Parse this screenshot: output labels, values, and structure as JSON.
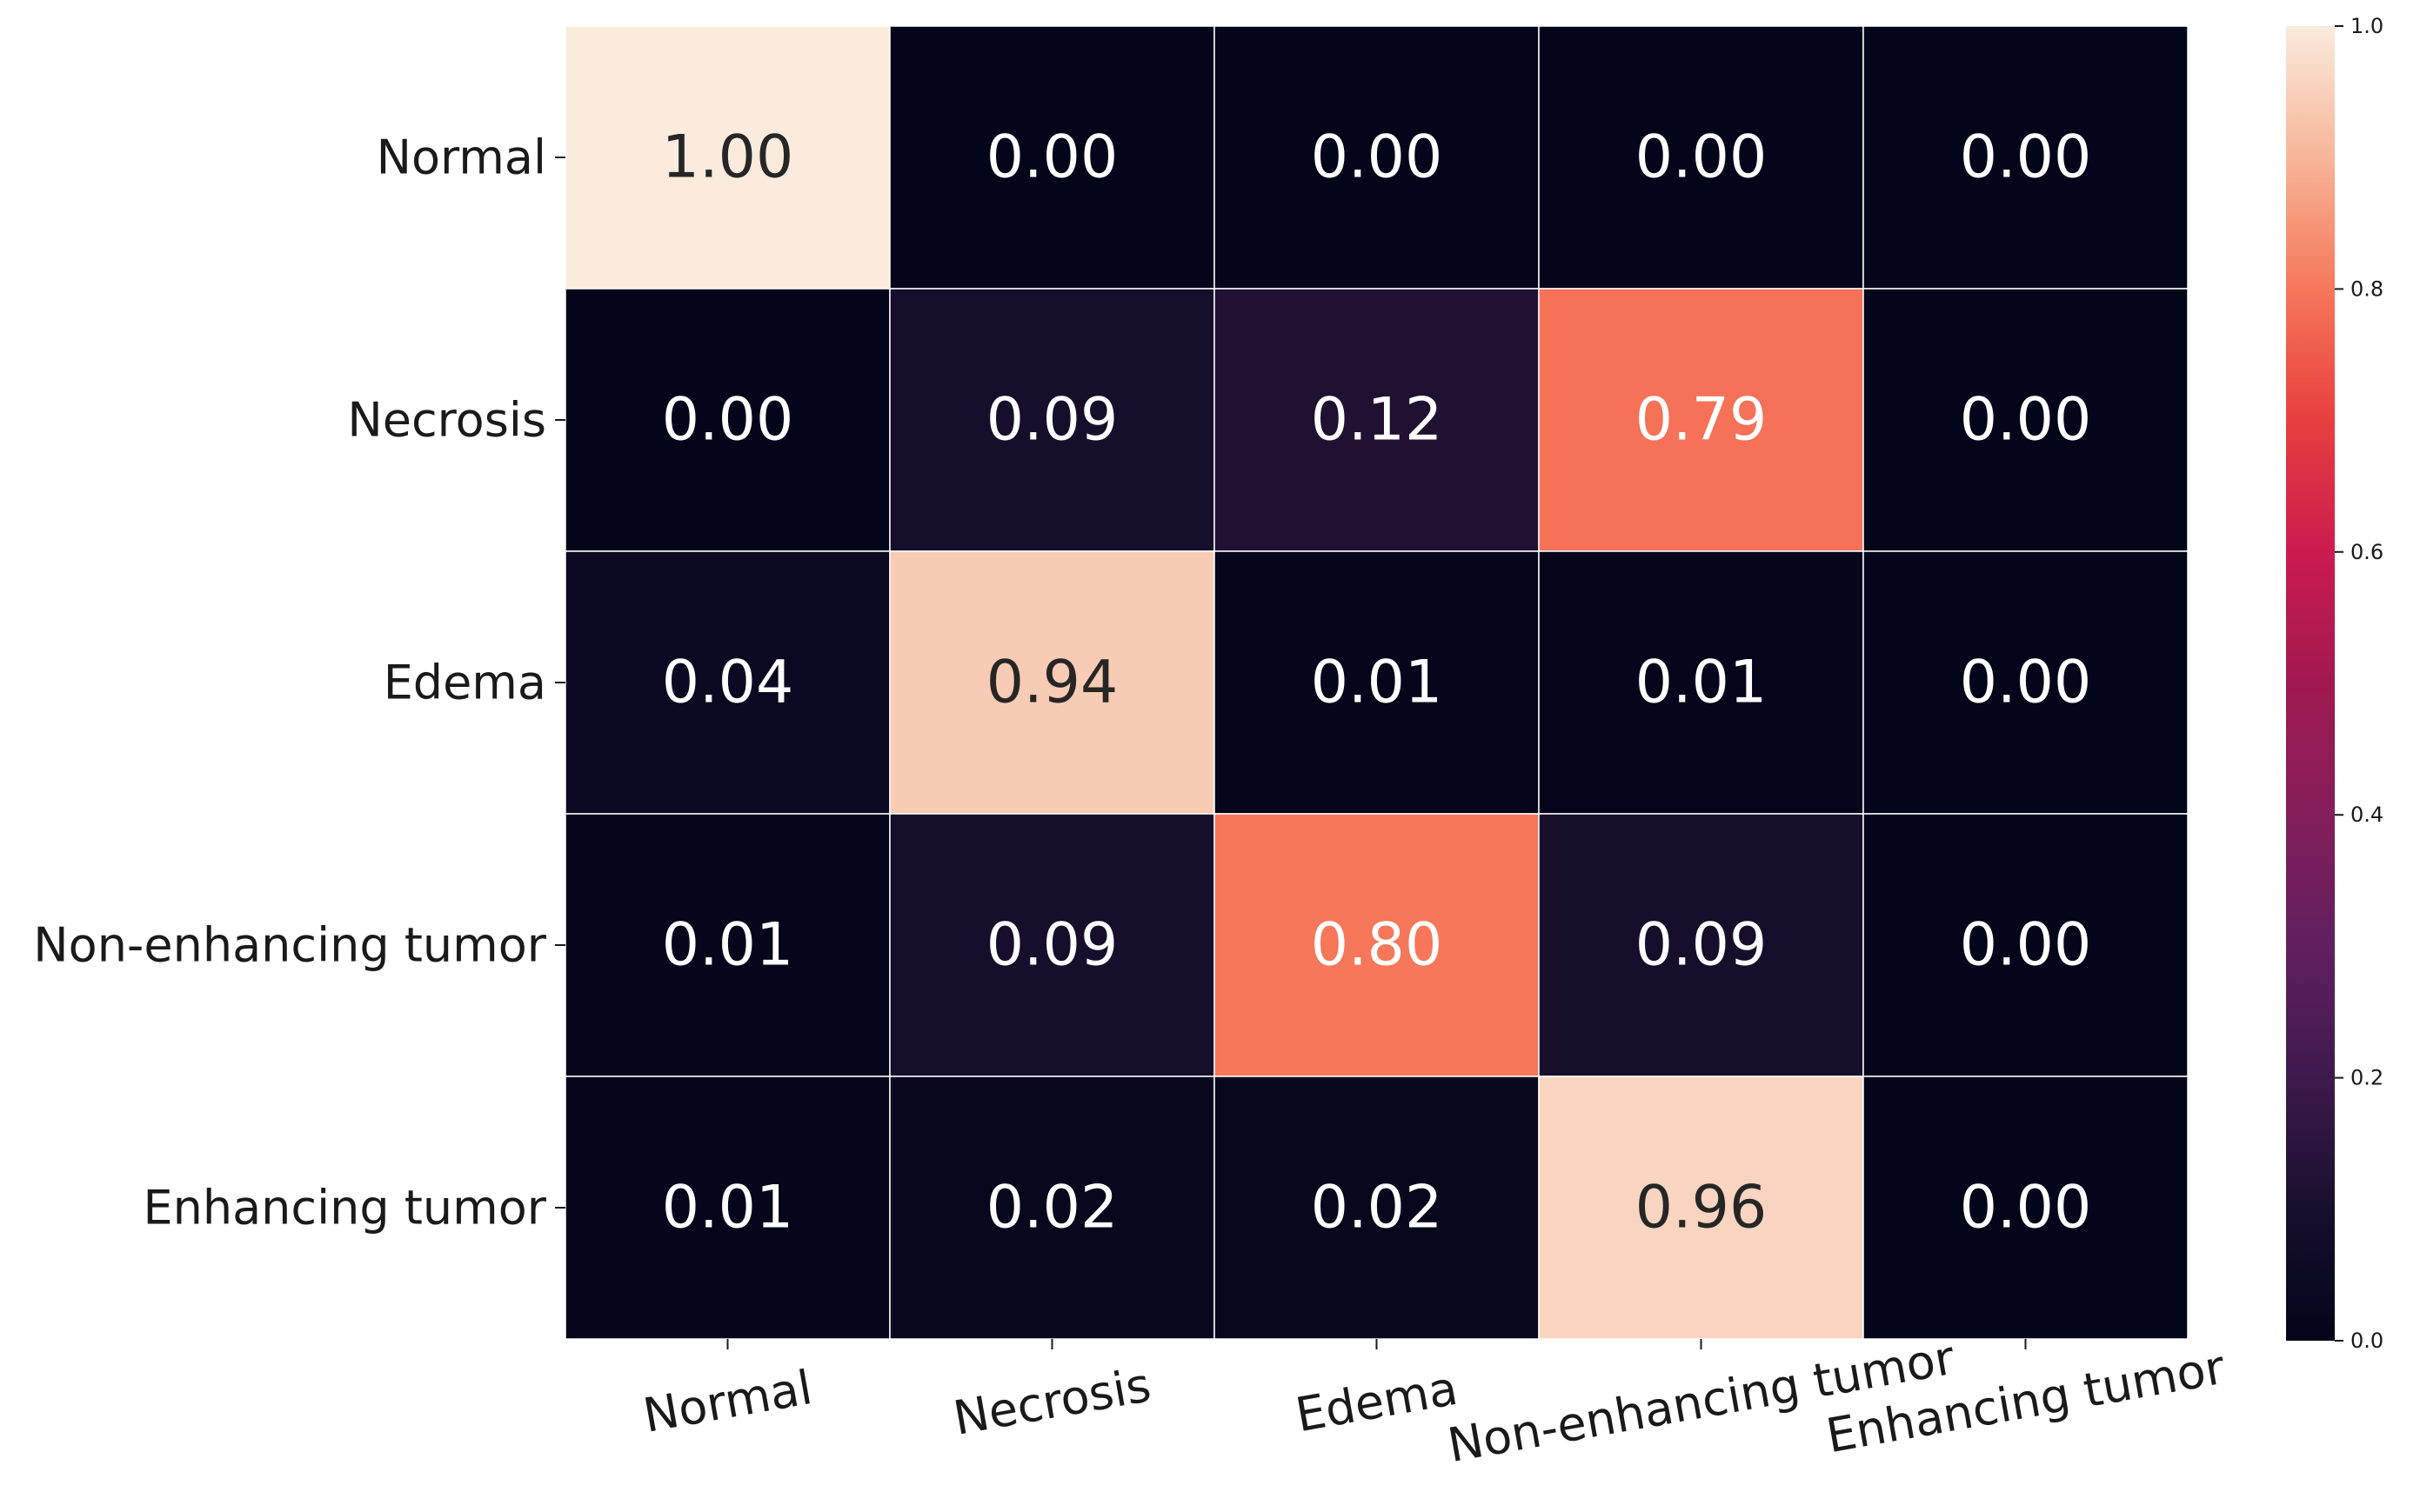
{
  "chart_data": {
    "type": "heatmap",
    "title": "",
    "xlabel": "",
    "ylabel": "",
    "rows": [
      "Normal",
      "Necrosis",
      "Edema",
      "Non-enhancing tumor",
      "Enhancing tumor"
    ],
    "columns": [
      "Normal",
      "Necrosis",
      "Edema",
      "Non-enhancing tumor",
      "Enhancing tumor"
    ],
    "values": [
      [
        1.0,
        0.0,
        0.0,
        0.0,
        0.0
      ],
      [
        0.0,
        0.09,
        0.12,
        0.79,
        0.0
      ],
      [
        0.04,
        0.94,
        0.01,
        0.01,
        0.0
      ],
      [
        0.01,
        0.09,
        0.8,
        0.09,
        0.0
      ],
      [
        0.01,
        0.02,
        0.02,
        0.96,
        0.0
      ]
    ],
    "value_format": "0.00",
    "colormap": "rocket",
    "colorbar": {
      "range": [
        0.0,
        1.0
      ],
      "ticks": [
        0.0,
        0.2,
        0.4,
        0.6,
        0.8,
        1.0
      ],
      "tick_labels": [
        "0.0",
        "0.2",
        "0.4",
        "0.6",
        "0.8",
        "1.0"
      ],
      "placement": "right"
    },
    "cell_border_color": "#ffffff",
    "annotation_dark_text_color": "#262626",
    "annotation_light_text_color": "#ffffff"
  }
}
